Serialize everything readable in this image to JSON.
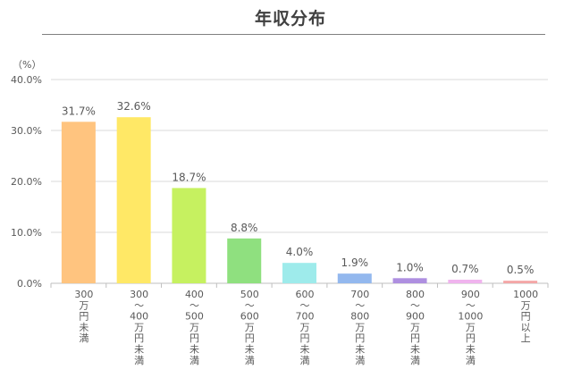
{
  "chart_data": {
    "type": "bar",
    "title": "年収分布",
    "ylabel": "（%）",
    "ylim": [
      0,
      40
    ],
    "yticks": [
      "0.0%",
      "10.0%",
      "20.0%",
      "30.0%",
      "40.0%"
    ],
    "grid": true,
    "categories": [
      [
        "300",
        "万",
        "円",
        "未",
        "満"
      ],
      [
        "300",
        "～",
        "400",
        "万",
        "円",
        "未",
        "満"
      ],
      [
        "400",
        "～",
        "500",
        "万",
        "円",
        "未",
        "満"
      ],
      [
        "500",
        "～",
        "600",
        "万",
        "円",
        "未",
        "満"
      ],
      [
        "600",
        "～",
        "700",
        "万",
        "円",
        "未",
        "満"
      ],
      [
        "700",
        "～",
        "800",
        "万",
        "円",
        "未",
        "満"
      ],
      [
        "800",
        "～",
        "900",
        "万",
        "円",
        "未",
        "満"
      ],
      [
        "900",
        "～",
        "1000",
        "万",
        "円",
        "未",
        "満"
      ],
      [
        "1000",
        "万",
        "円",
        "以",
        "上"
      ]
    ],
    "values": [
      31.7,
      32.6,
      18.7,
      8.8,
      4.0,
      1.9,
      1.0,
      0.7,
      0.5
    ],
    "value_labels": [
      "31.7%",
      "32.6%",
      "18.7%",
      "8.8%",
      "4.0%",
      "1.9%",
      "1.0%",
      "0.7%",
      "0.5%"
    ],
    "colors": [
      "#FFC47F",
      "#FFE866",
      "#C6F160",
      "#8FE07F",
      "#9EEBEB",
      "#93B8EE",
      "#AE8FE0",
      "#F0B4EE",
      "#F4A6A6"
    ]
  }
}
